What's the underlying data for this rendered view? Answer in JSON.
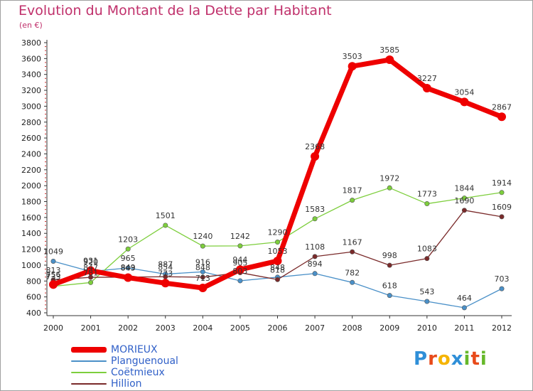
{
  "title": "Evolution du Montant de la Dette par Habitant",
  "subtitle": "(en €)",
  "brand": [
    "P",
    "r",
    "o",
    "x",
    "i",
    "t",
    "i"
  ],
  "brand_colors": [
    "#2f8fd8",
    "#e84a1a",
    "#f5b400",
    "#2f8fd8",
    "#66b82a",
    "#e84a1a",
    "#66b82a"
  ],
  "chart_data": {
    "type": "line",
    "title": "Evolution du Montant de la Dette par Habitant",
    "subtitle": "(en €)",
    "xlabel": "",
    "ylabel": "",
    "x": [
      "2000",
      "2001",
      "2002",
      "2003",
      "2004",
      "2005",
      "2006",
      "2007",
      "2008",
      "2009",
      "2010",
      "2011",
      "2012"
    ],
    "ylim": [
      400,
      3800
    ],
    "yticks": [
      "400",
      "600",
      "800",
      "1000",
      "1200",
      "1400",
      "1600",
      "1800",
      "2000",
      "2200",
      "2400",
      "2600",
      "2800",
      "3000",
      "3200",
      "3400",
      "3600",
      "3800"
    ],
    "grid": false,
    "legend_position": "bottom-left",
    "series": [
      {
        "name": "MORIEUX",
        "color": "#ee0000",
        "values": [
          756,
          931,
          843,
          773,
          713,
          944,
          1053,
          2368,
          3503,
          3585,
          3227,
          3054,
          2867
        ]
      },
      {
        "name": "Planguenoual",
        "color": "#4a90c8",
        "values": [
          1049,
          920,
          965,
          887,
          916,
          803,
          848,
          894,
          782,
          618,
          543,
          464,
          703
        ]
      },
      {
        "name": "Coëtmieux",
        "color": "#7dce3c",
        "values": [
          733,
          781,
          1203,
          1501,
          1240,
          1242,
          1290,
          1583,
          1817,
          1972,
          1773,
          1844,
          1914
        ]
      },
      {
        "name": "Hillion",
        "color": "#7a2a2a",
        "values": [
          813,
          847,
          849,
          854,
          848,
          905,
          818,
          1108,
          1167,
          998,
          1083,
          1690,
          1609
        ]
      }
    ]
  }
}
